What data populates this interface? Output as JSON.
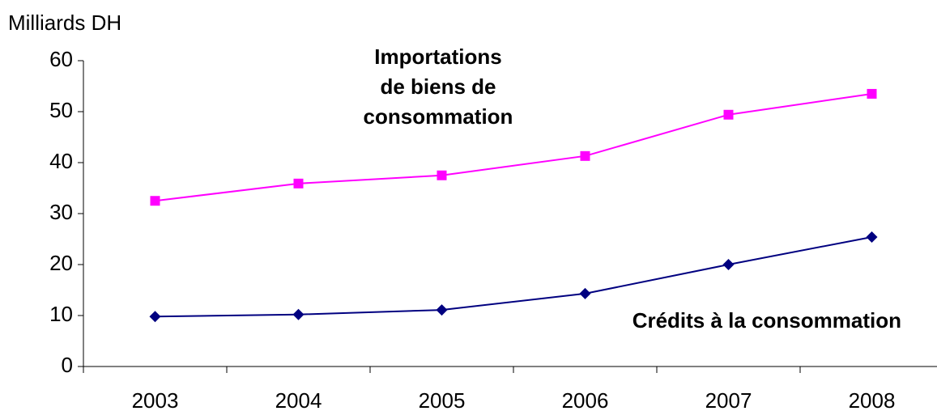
{
  "chart_data": {
    "type": "line",
    "y_label": "Milliards DH",
    "categories": [
      "2003",
      "2004",
      "2005",
      "2006",
      "2007",
      "2008"
    ],
    "series": [
      {
        "name": "Importations de biens de consommation",
        "color": "#ff00ff",
        "marker": "square",
        "values": [
          32.5,
          35.9,
          37.5,
          41.3,
          49.4,
          53.5
        ]
      },
      {
        "name": "Crédits à la consommation",
        "color": "#000080",
        "marker": "diamond",
        "values": [
          9.8,
          10.2,
          11.1,
          14.3,
          20.0,
          25.4
        ]
      }
    ],
    "ylim": [
      0,
      60
    ],
    "yticks": [
      0,
      10,
      20,
      30,
      40,
      50,
      60
    ],
    "grid": false
  }
}
